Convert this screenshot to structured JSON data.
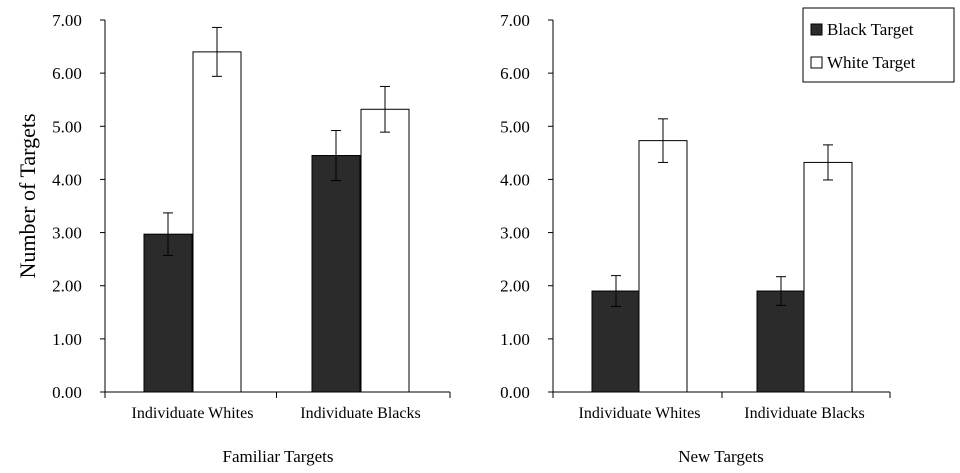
{
  "chart_data": [
    {
      "type": "bar",
      "title": "",
      "xlabel": "Familiar Targets",
      "ylabel": "Number of Targets",
      "ylim": [
        0,
        7
      ],
      "yticks": [
        "0.00",
        "1.00",
        "2.00",
        "3.00",
        "4.00",
        "5.00",
        "6.00",
        "7.00"
      ],
      "categories": [
        "Individuate Whites",
        "Individuate Blacks"
      ],
      "series": [
        {
          "name": "Black Target",
          "values": [
            2.97,
            4.45
          ],
          "errors": [
            0.4,
            0.47
          ]
        },
        {
          "name": "White Target",
          "values": [
            6.4,
            5.32
          ],
          "errors": [
            0.46,
            0.43
          ]
        }
      ],
      "grid": false
    },
    {
      "type": "bar",
      "title": "",
      "xlabel": "New Targets",
      "ylabel": "",
      "ylim": [
        0,
        7
      ],
      "yticks": [
        "0.00",
        "1.00",
        "2.00",
        "3.00",
        "4.00",
        "5.00",
        "6.00",
        "7.00"
      ],
      "categories": [
        "Individuate Whites",
        "Individuate Blacks"
      ],
      "series": [
        {
          "name": "Black Target",
          "values": [
            1.9,
            1.9
          ],
          "errors": [
            0.29,
            0.27
          ]
        },
        {
          "name": "White Target",
          "values": [
            4.73,
            4.32
          ],
          "errors": [
            0.41,
            0.33
          ]
        }
      ],
      "grid": false
    }
  ],
  "legend": {
    "placement": "top-right",
    "items": [
      {
        "label": "Black Target",
        "color": "#2b2b2b"
      },
      {
        "label": "White Target",
        "color": "#ffffff"
      }
    ]
  },
  "colors": {
    "black_target": "#2b2b2b",
    "white_target": "#ffffff",
    "stroke": "#000000"
  }
}
